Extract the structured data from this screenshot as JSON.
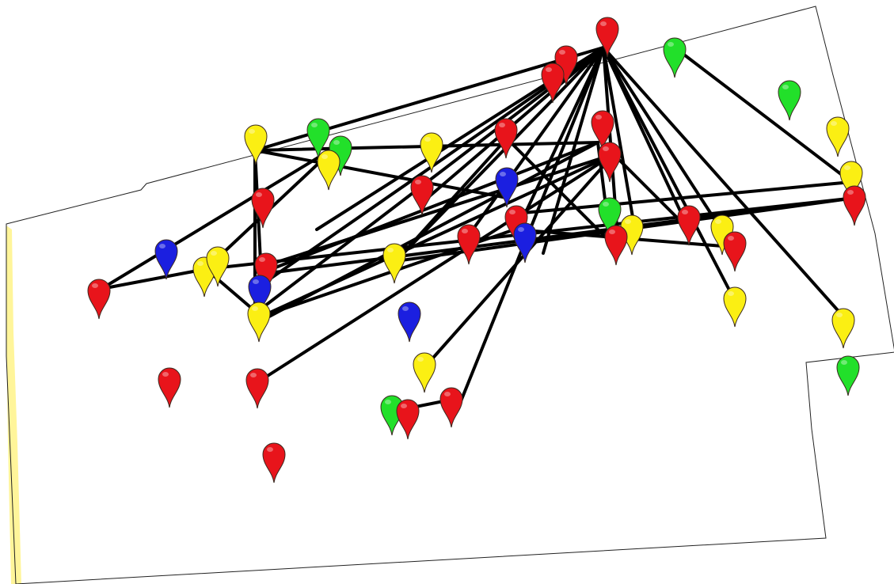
{
  "map": {
    "colors": {
      "background": "#ffffff",
      "outline": "#222222",
      "edge_strip": "#fff59a",
      "connection": "#000000",
      "pin_stroke": "#3a2a20"
    },
    "pin_colors": {
      "red": "#e8141b",
      "yellow": "#fbef13",
      "green": "#22e02a",
      "blue": "#1b1fe0"
    }
  }
}
